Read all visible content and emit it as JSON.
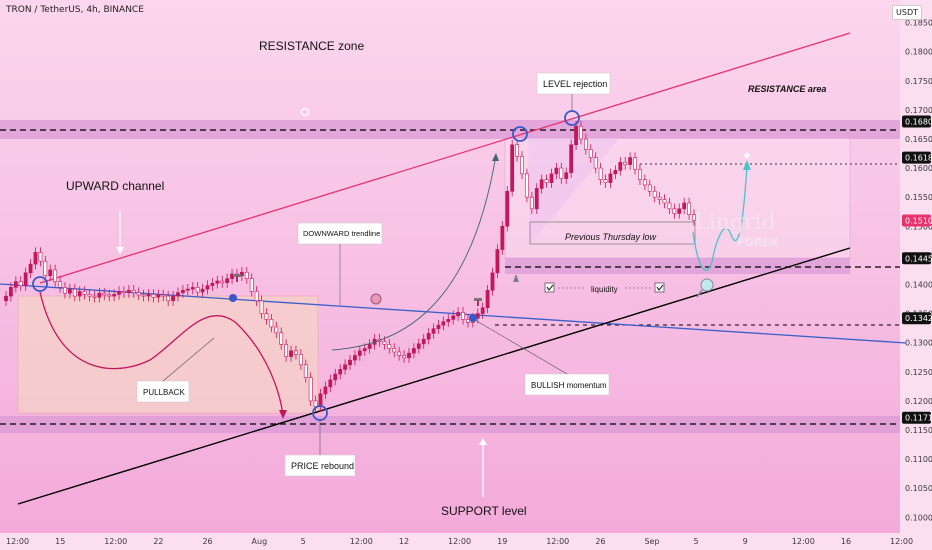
{
  "header": {
    "symbol_line": "TRON / TetherUS, 4h, BINANCE",
    "currency": "USDT"
  },
  "colors": {
    "background": "#f8bfe2",
    "resistance_line": "#e8326e",
    "downtrend_line": "#3a5fc8",
    "support_line": "#000000",
    "candle_up": "#c2185b",
    "candle_down": "#c2185b",
    "zone": "#d69ad0",
    "accent_blue": "#3a57c8"
  },
  "chart_data": {
    "type": "candlestick",
    "y_axis": {
      "ticks": [
        "0.1850",
        "0.1800",
        "0.1750",
        "0.1700",
        "0.1650",
        "0.1600",
        "0.1550",
        "0.1500",
        "0.1450",
        "0.1400",
        "0.1350",
        "0.1300",
        "0.1250",
        "0.1200",
        "0.1150",
        "0.1100",
        "0.1050",
        "0.1000"
      ],
      "range": [
        0.0985,
        0.1875
      ]
    },
    "x_axis": {
      "ticks": [
        "12:00",
        "15",
        "12:00",
        "22",
        "26",
        "Aug",
        "5",
        "12:00",
        "12",
        "12:00",
        "19",
        "12:00",
        "26",
        "Sep",
        "5",
        "9",
        "12:00",
        "16",
        "12:00"
      ]
    },
    "price_badges": [
      {
        "label": "0.1680",
        "value": 0.168,
        "style": "dark"
      },
      {
        "label": "0.1618",
        "value": 0.1618,
        "style": "dark"
      },
      {
        "label": "0.1510",
        "value": 0.151,
        "style": "red"
      },
      {
        "label": "0.1445",
        "value": 0.1445,
        "style": "dark"
      },
      {
        "label": "0.1342",
        "value": 0.1342,
        "style": "dark"
      },
      {
        "label": "0.1171",
        "value": 0.1171,
        "style": "dark"
      }
    ],
    "closes": [
      0.138,
      0.1395,
      0.1405,
      0.1398,
      0.142,
      0.1435,
      0.1455,
      0.144,
      0.1415,
      0.1425,
      0.1405,
      0.1395,
      0.1385,
      0.1392,
      0.138,
      0.1388,
      0.1383,
      0.138,
      0.1378,
      0.1385,
      0.1382,
      0.138,
      0.1383,
      0.1388,
      0.1386,
      0.139,
      0.1386,
      0.1382,
      0.138,
      0.1383,
      0.1378,
      0.1382,
      0.138,
      0.1372,
      0.138,
      0.1386,
      0.139,
      0.1392,
      0.1395,
      0.1387,
      0.1392,
      0.1398,
      0.1402,
      0.1406,
      0.1403,
      0.141,
      0.1418,
      0.1415,
      0.1421,
      0.141,
      0.1388,
      0.1372,
      0.135,
      0.134,
      0.1327,
      0.1317,
      0.1297,
      0.1276,
      0.1286,
      0.128,
      0.1262,
      0.124,
      0.12,
      0.119,
      0.1212,
      0.1224,
      0.1236,
      0.1246,
      0.1254,
      0.1262,
      0.127,
      0.1278,
      0.1286,
      0.129,
      0.1297,
      0.1306,
      0.1302,
      0.1297,
      0.129,
      0.1284,
      0.1278,
      0.1274,
      0.1282,
      0.129,
      0.1298,
      0.1306,
      0.1316,
      0.1324,
      0.133,
      0.1336,
      0.134,
      0.1346,
      0.1352,
      0.134,
      0.1335,
      0.1342,
      0.135,
      0.136,
      0.139,
      0.142,
      0.146,
      0.15,
      0.156,
      0.164,
      0.162,
      0.159,
      0.155,
      0.153,
      0.1565,
      0.158,
      0.1575,
      0.159,
      0.16,
      0.1582,
      0.1592,
      0.164,
      0.1672,
      0.165,
      0.1632,
      0.1618,
      0.16,
      0.158,
      0.1575,
      0.159,
      0.1596,
      0.161,
      0.1606,
      0.1618,
      0.1598,
      0.158,
      0.1571,
      0.156,
      0.155,
      0.1546,
      0.154,
      0.153,
      0.1522,
      0.153,
      0.154,
      0.152,
      0.151
    ],
    "annotations": {
      "resistance_zone": "RESISTANCE zone",
      "resistance_area": "RESISTANCE area",
      "level_rejection": "LEVEL rejection",
      "upward_channel": "UPWARD channel",
      "downward_trendline": "DOWNWARD trendline",
      "previous_thursday_low": "Previous Thursday low",
      "liquidity": "liquidity",
      "pullback": "PULLBACK",
      "bullish_momentum": "BULLISH momentum",
      "price_rebound": "PRICE rebound",
      "support_level": "SUPPORT level"
    },
    "watermark": {
      "line1": "Lingrid",
      "line2": "FOREX"
    }
  }
}
